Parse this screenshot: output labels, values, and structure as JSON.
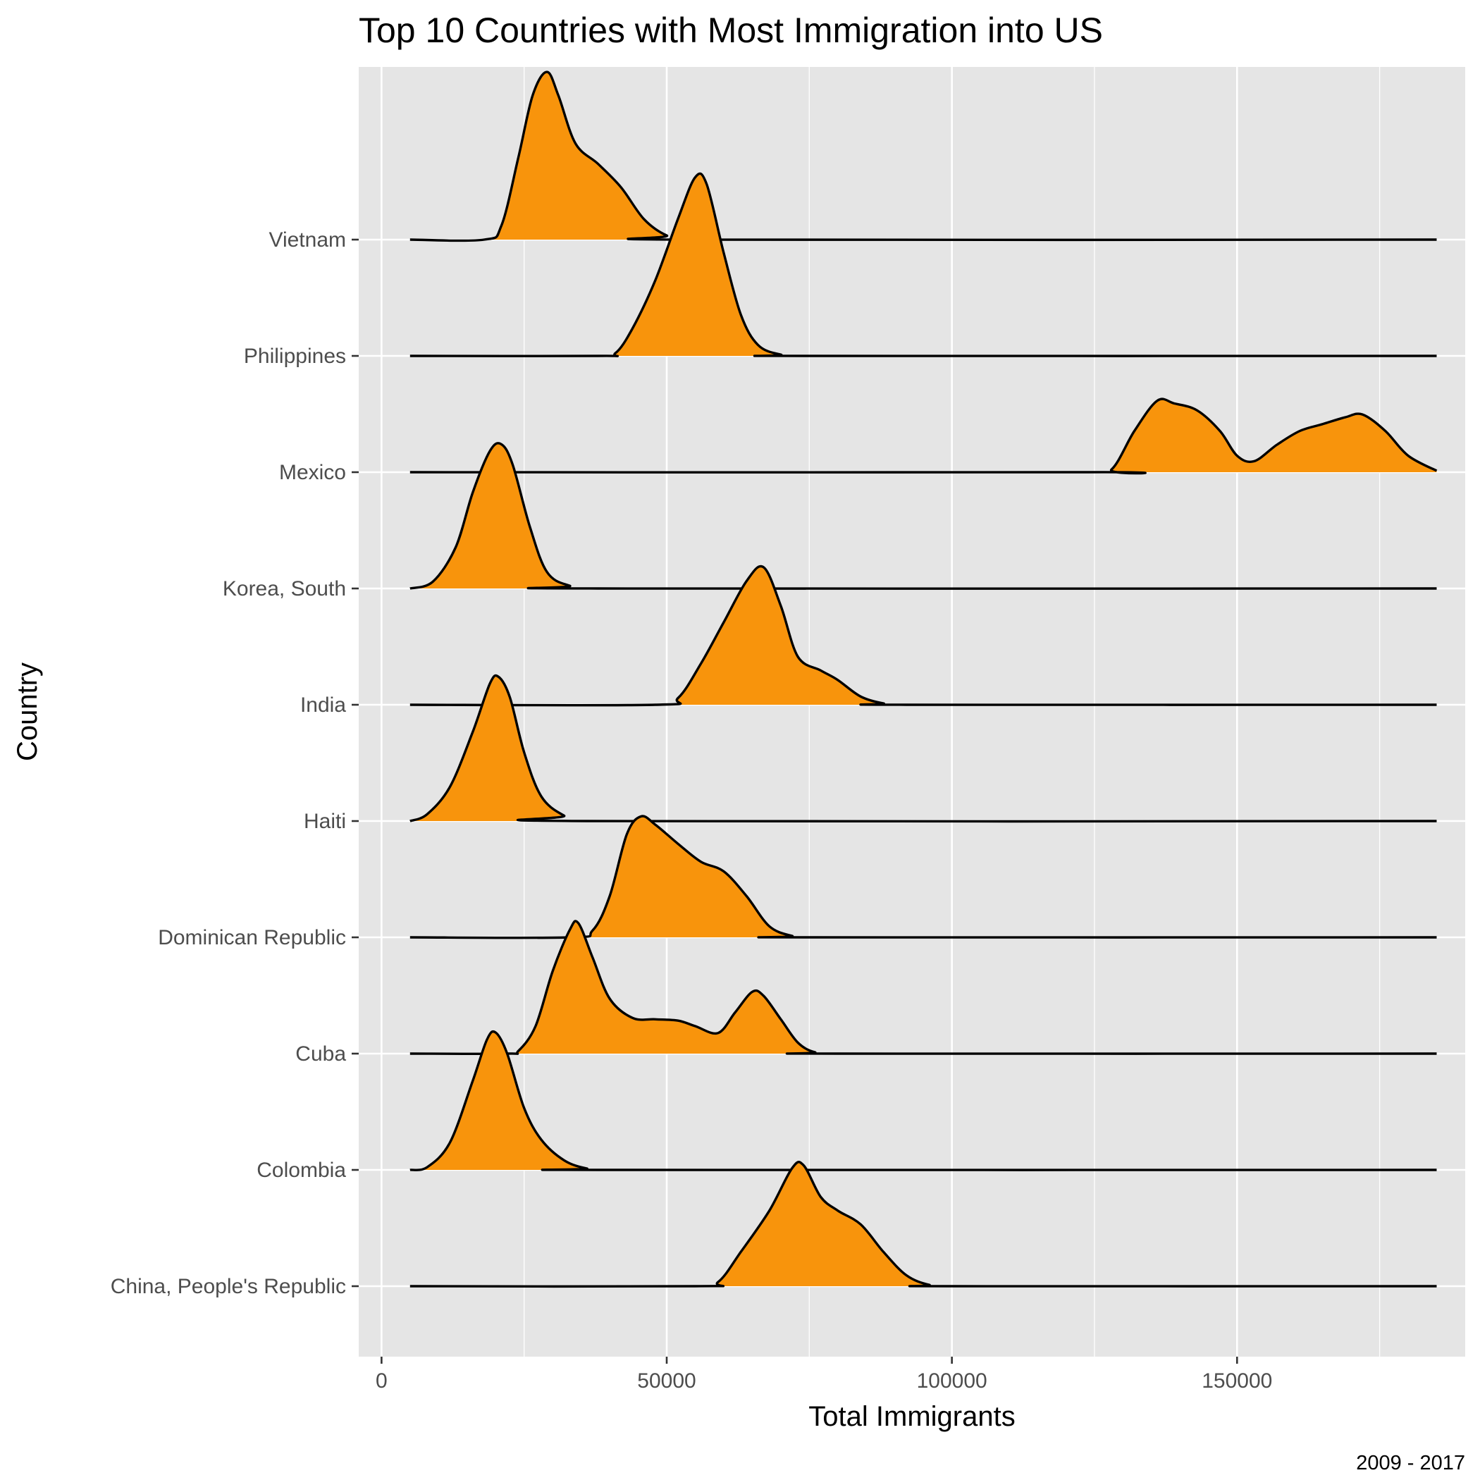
{
  "chart_data": {
    "type": "ridgeline",
    "title": "Top 10 Countries with Most Immigration into US",
    "xlabel": "Total Immigrants",
    "ylabel": "Country",
    "caption": "2009 - 2017",
    "xlim": [
      -4000,
      190000
    ],
    "x_ticks": [
      0,
      50000,
      100000,
      150000
    ],
    "x_tick_labels": [
      "0",
      "50000",
      "100000",
      "150000"
    ],
    "grid": true,
    "legend": "none",
    "fill_color": "#F8940C",
    "line_color": "#000000",
    "panel_color": "#E5E5E5",
    "density_range": [
      5000,
      185000
    ],
    "categories": [
      "China, People's Republic",
      "Colombia",
      "Cuba",
      "Dominican Republic",
      "Haiti",
      "India",
      "Korea, South",
      "Mexico",
      "Philippines",
      "Vietnam"
    ],
    "series": [
      {
        "name": "China, People's Republic",
        "points": [
          [
            5000,
            0
          ],
          [
            55000,
            0
          ],
          [
            59000,
            0.03
          ],
          [
            63000,
            0.25
          ],
          [
            68000,
            0.55
          ],
          [
            72000,
            0.86
          ],
          [
            74000,
            0.88
          ],
          [
            77000,
            0.65
          ],
          [
            80000,
            0.55
          ],
          [
            84000,
            0.45
          ],
          [
            88000,
            0.25
          ],
          [
            92000,
            0.08
          ],
          [
            96000,
            0.01
          ],
          [
            100000,
            0
          ],
          [
            185000,
            0
          ]
        ]
      },
      {
        "name": "Colombia",
        "points": [
          [
            5000,
            0
          ],
          [
            8000,
            0.02
          ],
          [
            12000,
            0.2
          ],
          [
            16000,
            0.65
          ],
          [
            18500,
            0.95
          ],
          [
            20000,
            1.0
          ],
          [
            22000,
            0.85
          ],
          [
            25000,
            0.45
          ],
          [
            28000,
            0.22
          ],
          [
            32000,
            0.07
          ],
          [
            36000,
            0.01
          ],
          [
            40000,
            0
          ],
          [
            185000,
            0
          ]
        ]
      },
      {
        "name": "Cuba",
        "points": [
          [
            5000,
            0
          ],
          [
            22000,
            0
          ],
          [
            24000,
            0.02
          ],
          [
            27000,
            0.2
          ],
          [
            30000,
            0.6
          ],
          [
            33000,
            0.9
          ],
          [
            34500,
            0.95
          ],
          [
            37000,
            0.7
          ],
          [
            40000,
            0.4
          ],
          [
            44000,
            0.26
          ],
          [
            48000,
            0.25
          ],
          [
            52000,
            0.24
          ],
          [
            55000,
            0.2
          ],
          [
            59000,
            0.15
          ],
          [
            62000,
            0.3
          ],
          [
            65000,
            0.45
          ],
          [
            67000,
            0.42
          ],
          [
            70000,
            0.25
          ],
          [
            73000,
            0.08
          ],
          [
            76000,
            0.01
          ],
          [
            80000,
            0
          ],
          [
            185000,
            0
          ]
        ]
      },
      {
        "name": "Dominican Republic",
        "points": [
          [
            5000,
            0
          ],
          [
            33000,
            0
          ],
          [
            37000,
            0.05
          ],
          [
            40000,
            0.3
          ],
          [
            43000,
            0.75
          ],
          [
            45500,
            0.88
          ],
          [
            48000,
            0.82
          ],
          [
            52000,
            0.68
          ],
          [
            56000,
            0.55
          ],
          [
            60000,
            0.48
          ],
          [
            64000,
            0.3
          ],
          [
            68000,
            0.08
          ],
          [
            72000,
            0.01
          ],
          [
            75000,
            0
          ],
          [
            185000,
            0
          ]
        ]
      },
      {
        "name": "Haiti",
        "points": [
          [
            5000,
            0
          ],
          [
            8000,
            0.05
          ],
          [
            12000,
            0.25
          ],
          [
            16000,
            0.65
          ],
          [
            19000,
            1.0
          ],
          [
            20500,
            1.05
          ],
          [
            22500,
            0.9
          ],
          [
            25000,
            0.5
          ],
          [
            28000,
            0.18
          ],
          [
            32000,
            0.04
          ],
          [
            36000,
            0
          ],
          [
            185000,
            0
          ]
        ]
      },
      {
        "name": "India",
        "points": [
          [
            5000,
            0
          ],
          [
            48000,
            0
          ],
          [
            52000,
            0.05
          ],
          [
            56000,
            0.3
          ],
          [
            60000,
            0.6
          ],
          [
            64000,
            0.9
          ],
          [
            67000,
            1.0
          ],
          [
            70000,
            0.72
          ],
          [
            73000,
            0.35
          ],
          [
            77000,
            0.25
          ],
          [
            80000,
            0.18
          ],
          [
            84000,
            0.06
          ],
          [
            88000,
            0.01
          ],
          [
            92000,
            0
          ],
          [
            185000,
            0
          ]
        ]
      },
      {
        "name": "Korea, South",
        "points": [
          [
            5000,
            0
          ],
          [
            9000,
            0.05
          ],
          [
            13000,
            0.3
          ],
          [
            16000,
            0.7
          ],
          [
            19000,
            1.0
          ],
          [
            21000,
            1.05
          ],
          [
            23000,
            0.9
          ],
          [
            26000,
            0.45
          ],
          [
            29000,
            0.12
          ],
          [
            33000,
            0.02
          ],
          [
            38000,
            0
          ],
          [
            185000,
            0
          ]
        ]
      },
      {
        "name": "Mexico",
        "points": [
          [
            5000,
            0
          ],
          [
            124000,
            0
          ],
          [
            128000,
            0.02
          ],
          [
            132000,
            0.3
          ],
          [
            136000,
            0.52
          ],
          [
            139000,
            0.5
          ],
          [
            143000,
            0.45
          ],
          [
            147000,
            0.3
          ],
          [
            150000,
            0.12
          ],
          [
            153000,
            0.08
          ],
          [
            157000,
            0.2
          ],
          [
            161000,
            0.3
          ],
          [
            165000,
            0.35
          ],
          [
            169000,
            0.4
          ],
          [
            172000,
            0.42
          ],
          [
            176000,
            0.3
          ],
          [
            180000,
            0.12
          ],
          [
            185000,
            0.01
          ]
        ]
      },
      {
        "name": "Philippines",
        "points": [
          [
            5000,
            0
          ],
          [
            38000,
            0
          ],
          [
            41000,
            0.02
          ],
          [
            44000,
            0.2
          ],
          [
            48000,
            0.55
          ],
          [
            52000,
            1.0
          ],
          [
            55000,
            1.3
          ],
          [
            57000,
            1.25
          ],
          [
            60000,
            0.75
          ],
          [
            63000,
            0.3
          ],
          [
            66000,
            0.08
          ],
          [
            70000,
            0.01
          ],
          [
            75000,
            0
          ],
          [
            185000,
            0
          ]
        ]
      },
      {
        "name": "Vietnam",
        "points": [
          [
            5000,
            0
          ],
          [
            18000,
            0
          ],
          [
            21000,
            0.1
          ],
          [
            24000,
            0.6
          ],
          [
            26500,
            1.05
          ],
          [
            29000,
            1.22
          ],
          [
            31000,
            1.05
          ],
          [
            34000,
            0.7
          ],
          [
            38000,
            0.55
          ],
          [
            42000,
            0.38
          ],
          [
            46000,
            0.15
          ],
          [
            50000,
            0.03
          ],
          [
            54000,
            0
          ],
          [
            185000,
            0
          ]
        ]
      }
    ]
  }
}
